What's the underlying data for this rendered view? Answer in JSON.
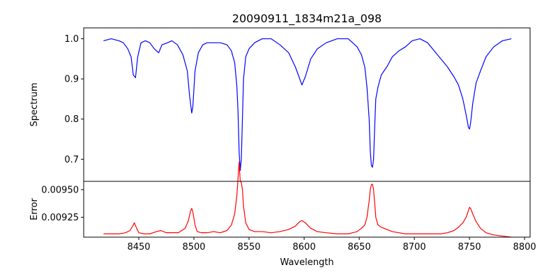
{
  "chart_data": [
    {
      "type": "line",
      "title": "20090911_1834m21a_098",
      "xlabel": "",
      "ylabel": "Spectrum",
      "xlim": [
        8400,
        8805
      ],
      "ylim": [
        0.645,
        1.027
      ],
      "yticks": [
        0.7,
        0.8,
        0.9,
        1.0
      ],
      "ytick_labels": [
        "0.7",
        "0.8",
        "0.9",
        "1.0"
      ],
      "series": [
        {
          "color": "#0000ff",
          "x": [
            8418,
            8425,
            8432,
            8436,
            8440,
            8443,
            8445,
            8447,
            8449,
            8452,
            8456,
            8460,
            8464,
            8468,
            8471,
            8476,
            8480,
            8485,
            8490,
            8494,
            8496,
            8498,
            8499,
            8501,
            8504,
            8508,
            8512,
            8518,
            8524,
            8530,
            8534,
            8537,
            8539,
            8540,
            8541,
            8542,
            8543,
            8544,
            8545,
            8547,
            8550,
            8555,
            8562,
            8570,
            8578,
            8586,
            8592,
            8596,
            8598,
            8601,
            8606,
            8612,
            8620,
            8630,
            8640,
            8648,
            8652,
            8655,
            8657,
            8659,
            8660,
            8661,
            8662,
            8663,
            8664,
            8665,
            8667,
            8670,
            8675,
            8680,
            8686,
            8692,
            8698,
            8705,
            8712,
            8718,
            8724,
            8730,
            8736,
            8740,
            8744,
            8747,
            8749,
            8750,
            8751,
            8753,
            8756,
            8760,
            8765,
            8772,
            8780,
            8788
          ],
          "y": [
            0.995,
            1.0,
            0.995,
            0.99,
            0.975,
            0.955,
            0.91,
            0.903,
            0.955,
            0.99,
            0.995,
            0.99,
            0.975,
            0.965,
            0.985,
            0.99,
            0.995,
            0.985,
            0.96,
            0.92,
            0.86,
            0.815,
            0.83,
            0.92,
            0.965,
            0.985,
            0.99,
            0.99,
            0.99,
            0.985,
            0.97,
            0.94,
            0.88,
            0.82,
            0.72,
            0.672,
            0.7,
            0.8,
            0.9,
            0.955,
            0.975,
            0.99,
            1.0,
            1.0,
            0.985,
            0.965,
            0.93,
            0.9,
            0.885,
            0.905,
            0.95,
            0.975,
            0.99,
            1.0,
            1.0,
            0.98,
            0.96,
            0.93,
            0.88,
            0.8,
            0.72,
            0.685,
            0.68,
            0.7,
            0.78,
            0.85,
            0.88,
            0.91,
            0.93,
            0.955,
            0.97,
            0.98,
            0.995,
            1.0,
            0.99,
            0.97,
            0.95,
            0.93,
            0.905,
            0.885,
            0.85,
            0.81,
            0.78,
            0.775,
            0.79,
            0.84,
            0.89,
            0.92,
            0.955,
            0.98,
            0.995,
            1.0
          ]
        }
      ]
    },
    {
      "type": "line",
      "title": "",
      "xlabel": "Wavelength",
      "ylabel": "Error",
      "xlim": [
        8400,
        8805
      ],
      "ylim": [
        0.00907,
        0.009575
      ],
      "yticks": [
        0.00925,
        0.0095
      ],
      "ytick_labels": [
        "0.00925",
        "0.00950"
      ],
      "xticks": [
        8450,
        8500,
        8550,
        8600,
        8650,
        8700,
        8750,
        8800
      ],
      "xtick_labels": [
        "8450",
        "8500",
        "8550",
        "8600",
        "8650",
        "8700",
        "8750",
        "8800"
      ],
      "series": [
        {
          "color": "#ff0000",
          "x": [
            8418,
            8425,
            8432,
            8438,
            8442,
            8445,
            8446,
            8448,
            8450,
            8455,
            8460,
            8466,
            8470,
            8475,
            8480,
            8486,
            8492,
            8495,
            8497,
            8498,
            8499,
            8501,
            8503,
            8507,
            8512,
            8518,
            8524,
            8530,
            8534,
            8537,
            8539,
            8540,
            8541,
            8542,
            8543,
            8544,
            8545,
            8547,
            8550,
            8555,
            8562,
            8570,
            8578,
            8586,
            8592,
            8596,
            8598,
            8601,
            8606,
            8612,
            8620,
            8630,
            8640,
            8648,
            8652,
            8655,
            8657,
            8659,
            8660,
            8661,
            8662,
            8663,
            8664,
            8665,
            8667,
            8670,
            8675,
            8680,
            8686,
            8692,
            8698,
            8705,
            8712,
            8718,
            8724,
            8730,
            8736,
            8740,
            8744,
            8747,
            8749,
            8750,
            8751,
            8753,
            8756,
            8760,
            8765,
            8772,
            8780,
            8788
          ],
          "y": [
            0.0091,
            0.0091,
            0.0091,
            0.00911,
            0.00913,
            0.00918,
            0.0092,
            0.00915,
            0.00911,
            0.0091,
            0.0091,
            0.00912,
            0.00913,
            0.00911,
            0.00911,
            0.00911,
            0.00915,
            0.00922,
            0.00931,
            0.00933,
            0.0093,
            0.00918,
            0.00912,
            0.00911,
            0.00911,
            0.00912,
            0.00911,
            0.00913,
            0.00918,
            0.00928,
            0.00945,
            0.0096,
            0.00975,
            0.009575,
            0.009565,
            0.0095,
            0.00935,
            0.0092,
            0.00914,
            0.00912,
            0.00912,
            0.00911,
            0.00912,
            0.00914,
            0.00917,
            0.00921,
            0.00922,
            0.0092,
            0.00915,
            0.00912,
            0.00911,
            0.0091,
            0.0091,
            0.00912,
            0.00915,
            0.00918,
            0.00925,
            0.0094,
            0.0095,
            0.009545,
            0.00955,
            0.0095,
            0.00938,
            0.00925,
            0.00918,
            0.00916,
            0.00914,
            0.00912,
            0.00911,
            0.0091,
            0.0091,
            0.0091,
            0.0091,
            0.0091,
            0.0091,
            0.00911,
            0.00913,
            0.00916,
            0.0092,
            0.00925,
            0.00931,
            0.00934,
            0.00933,
            0.00928,
            0.00921,
            0.00915,
            0.00911,
            0.00909,
            0.00908,
            0.00907
          ]
        }
      ]
    }
  ]
}
